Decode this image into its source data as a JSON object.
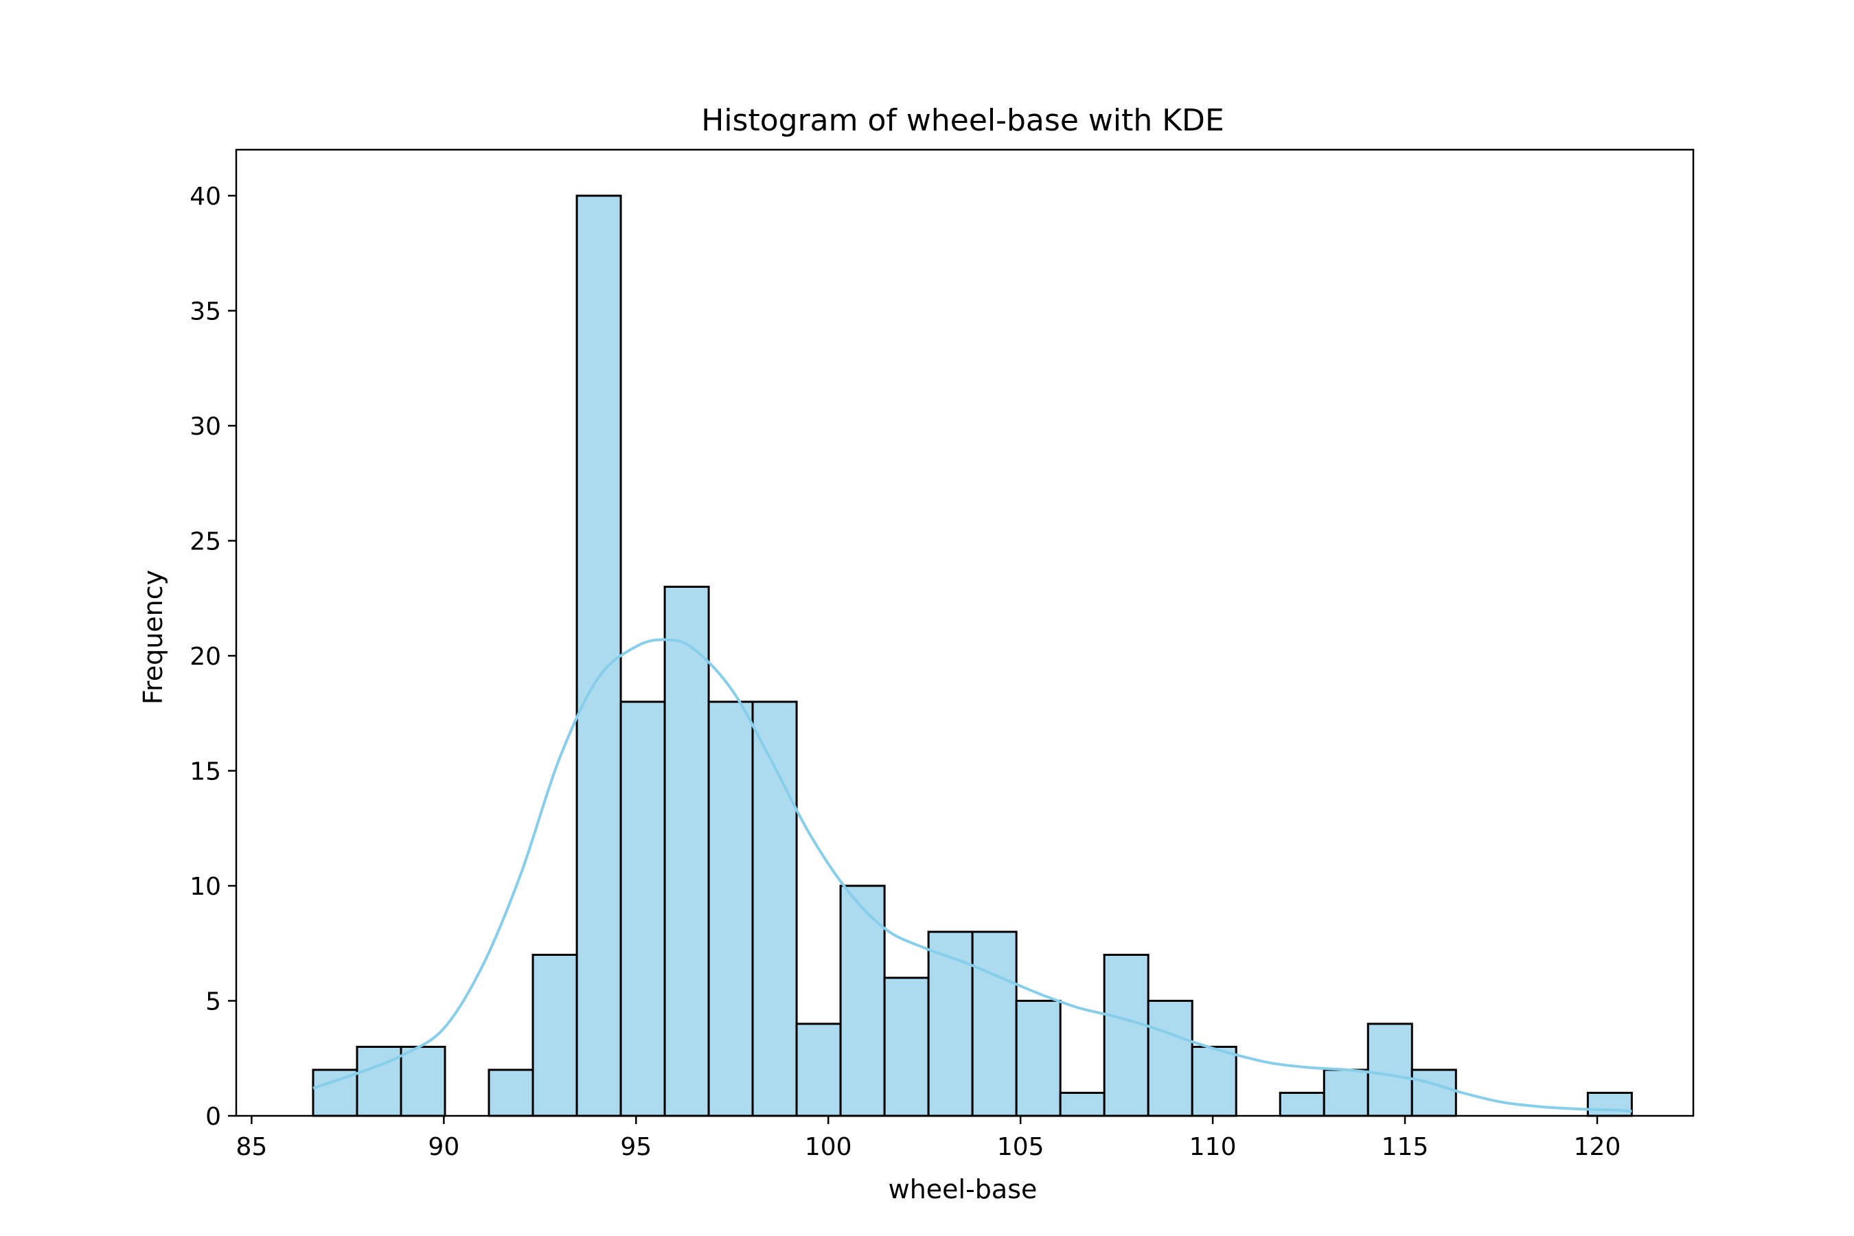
{
  "chart_data": {
    "type": "bar",
    "title": "Histogram of wheel-base with KDE",
    "xlabel": "wheel-base",
    "ylabel": "Frequency",
    "xlim": [
      84.6,
      122.5
    ],
    "ylim": [
      0,
      42
    ],
    "xticks": [
      85,
      90,
      95,
      100,
      105,
      110,
      115,
      120
    ],
    "yticks": [
      0,
      5,
      10,
      15,
      20,
      25,
      30,
      35,
      40
    ],
    "bins": {
      "start": 86.6,
      "width": 1.1433,
      "counts": [
        2,
        3,
        3,
        0,
        2,
        7,
        40,
        18,
        23,
        18,
        18,
        4,
        10,
        6,
        8,
        8,
        5,
        1,
        7,
        5,
        3,
        0,
        1,
        2,
        4,
        2,
        0,
        0,
        0,
        1
      ]
    },
    "kde": {
      "x": [
        86.6,
        88,
        89,
        90,
        91,
        92,
        93,
        94,
        95,
        95.8,
        96.5,
        97.5,
        98.5,
        99.5,
        100.5,
        101.5,
        102.5,
        103.5,
        104.5,
        105.5,
        106.5,
        107.5,
        108.5,
        109.5,
        110.5,
        111.5,
        112.5,
        113.5,
        114.5,
        115.5,
        116.5,
        117.5,
        118.5,
        119.5,
        120.5,
        120.9
      ],
      "y": [
        1.2,
        2.0,
        2.7,
        3.8,
        6.5,
        10.5,
        15.5,
        19.0,
        20.4,
        20.7,
        20.3,
        18.5,
        15.5,
        12.3,
        9.8,
        8.1,
        7.3,
        6.7,
        6.0,
        5.3,
        4.7,
        4.3,
        3.8,
        3.2,
        2.7,
        2.3,
        2.1,
        2.0,
        1.8,
        1.5,
        1.0,
        0.6,
        0.4,
        0.3,
        0.25,
        0.2
      ]
    },
    "colors": {
      "bar_fill": "#acdbef",
      "bar_edge": "#000000",
      "kde_line": "#87ceeb"
    },
    "grid": false,
    "legend": "none"
  }
}
